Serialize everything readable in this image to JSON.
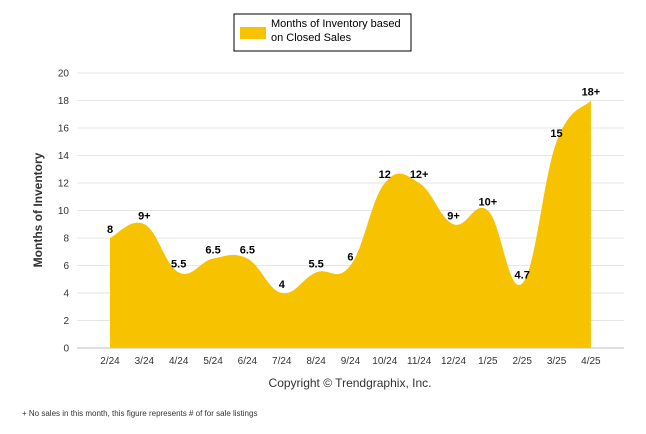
{
  "chart_data": {
    "type": "area",
    "categories": [
      "2/24",
      "3/24",
      "4/24",
      "5/24",
      "6/24",
      "7/24",
      "8/24",
      "9/24",
      "10/24",
      "11/24",
      "12/24",
      "1/25",
      "2/25",
      "3/25",
      "4/25"
    ],
    "values": [
      8,
      9,
      5.5,
      6.5,
      6.5,
      4,
      5.5,
      6,
      12,
      12,
      9,
      10,
      4.7,
      15,
      18
    ],
    "data_labels": [
      "8",
      "9+",
      "5.5",
      "6.5",
      "6.5",
      "4",
      "5.5",
      "6",
      "12",
      "12+",
      "9+",
      "10+",
      "4.7",
      "15",
      "18+"
    ],
    "series": [
      {
        "name": "Months of Inventory based on Closed Sales",
        "color": "#F7C300"
      }
    ],
    "legend_lines": [
      "Months of Inventory based",
      "on Closed Sales"
    ],
    "ylabel": "Months of Inventory",
    "xlabel": "",
    "ylim": [
      0,
      20
    ],
    "yticks": [
      "0",
      "2",
      "4",
      "6",
      "8",
      "10",
      "12",
      "14",
      "16",
      "18",
      "20"
    ],
    "grid": true,
    "legend_position": "top-center"
  },
  "copyright": "Copyright © Trendgraphix, Inc.",
  "footnote": "+ No sales in this month, this figure represents # of for sale listings"
}
